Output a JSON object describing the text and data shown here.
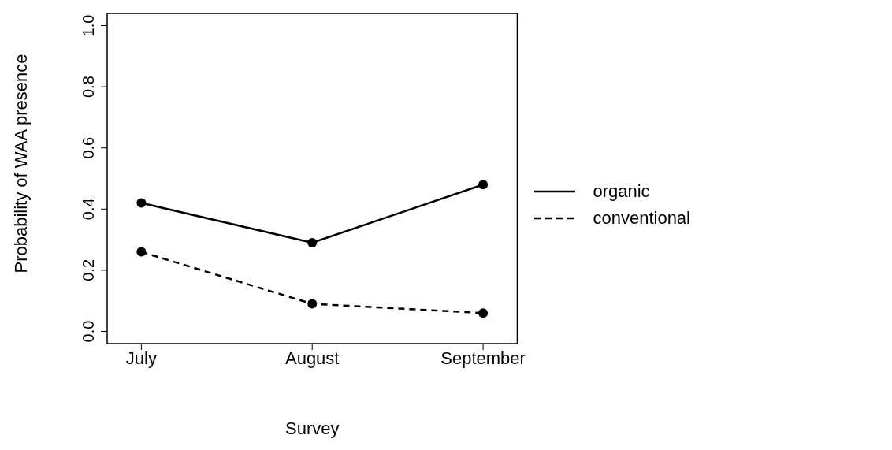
{
  "chart_data": {
    "type": "line",
    "xlabel": "Survey",
    "ylabel": "Probability of WAA presence",
    "categories": [
      "July",
      "August",
      "September"
    ],
    "series": [
      {
        "name": "organic",
        "color": "#000000",
        "line_style": "solid",
        "values": [
          0.42,
          0.29,
          0.48
        ]
      },
      {
        "name": "conventional",
        "color": "#000000",
        "line_style": "dashed",
        "values": [
          0.26,
          0.09,
          0.06
        ]
      }
    ],
    "ylim": [
      -0.04,
      1.04
    ],
    "yticks": [
      {
        "value": 0,
        "label": "0.0"
      },
      {
        "value": 0.2,
        "label": "0.2"
      },
      {
        "value": 0.4,
        "label": "0.4"
      },
      {
        "value": 0.6,
        "label": "0.6"
      },
      {
        "value": 0.8,
        "label": "0.8"
      },
      {
        "value": 1,
        "label": "1.0"
      }
    ],
    "marker": "circle",
    "legend": "right",
    "grid": false
  }
}
